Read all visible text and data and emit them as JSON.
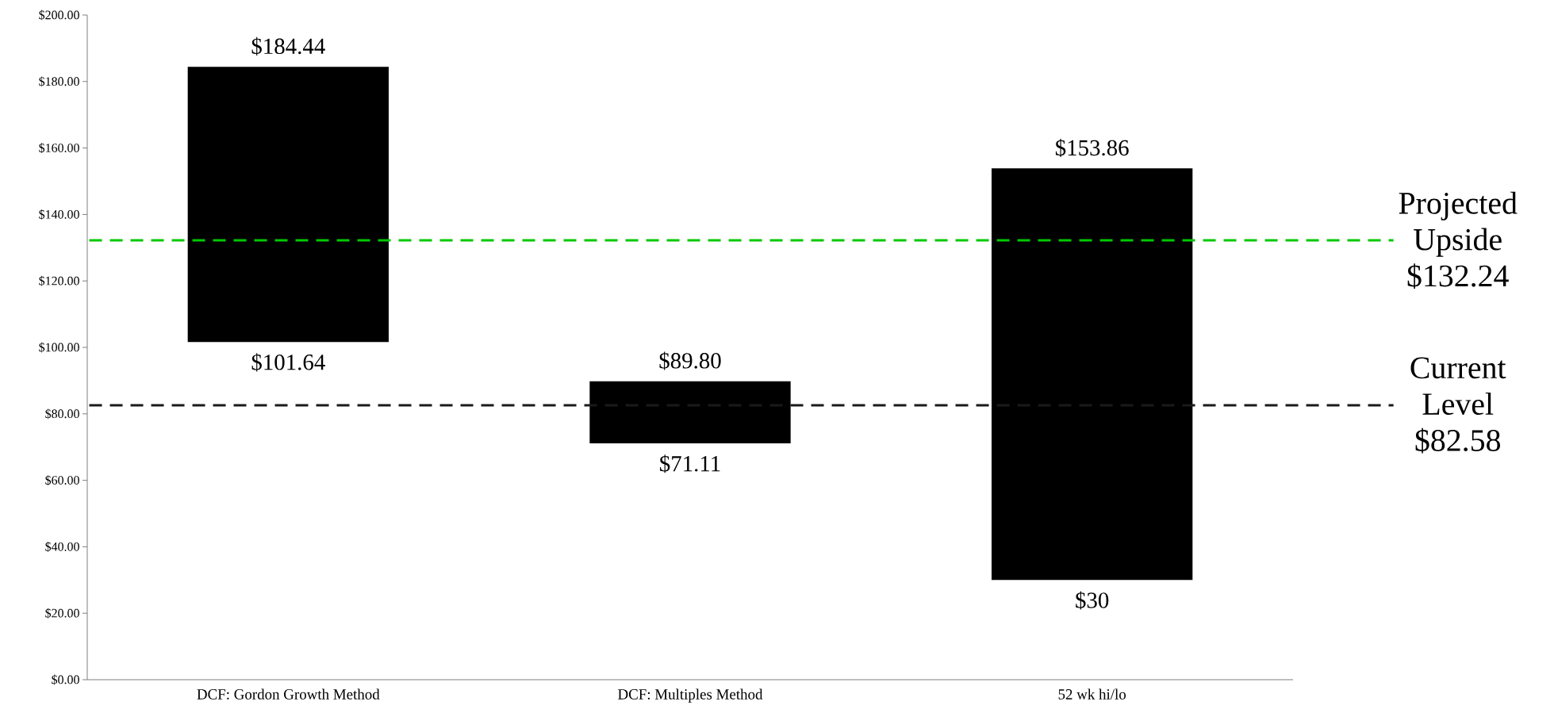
{
  "chart_data": {
    "type": "bar",
    "categories": [
      "DCF: Gordon Growth Method",
      "DCF: Multiples Method",
      "52 wk hi/lo"
    ],
    "values": [
      82.8,
      18.69,
      123.86
    ],
    "base": [
      101.64,
      71.11,
      30
    ],
    "color": "#000000",
    "ylim": [
      0,
      200
    ],
    "yticks": [
      {
        "value": 0,
        "label": "$0.00"
      },
      {
        "value": 20,
        "label": "$20.00"
      },
      {
        "value": 40,
        "label": "$40.00"
      },
      {
        "value": 60,
        "label": "$60.00"
      },
      {
        "value": 80,
        "label": "$80.00"
      },
      {
        "value": 100,
        "label": "$100.00"
      },
      {
        "value": 120,
        "label": "$120.00"
      },
      {
        "value": 140,
        "label": "$140.00"
      },
      {
        "value": 160,
        "label": "$160.00"
      },
      {
        "value": 180,
        "label": "$180.00"
      },
      {
        "value": 200,
        "label": "$200.00"
      }
    ],
    "annotations": [
      {
        "text": "$184.44",
        "x": "DCF: Gordon Growth Method",
        "y": 184.44
      },
      {
        "text": "$101.64",
        "x": "DCF: Gordon Growth Method",
        "y": 101.64
      },
      {
        "text": "$89.80",
        "x": "DCF: Multiples Method",
        "y": 89.8
      },
      {
        "text": "$71.11",
        "x": "DCF: Multiples Method",
        "y": 71.11
      },
      {
        "text": "$153.86",
        "x": "52 wk hi/lo",
        "y": 153.86
      },
      {
        "text": "$30",
        "x": "52 wk hi/lo",
        "y": 30
      }
    ],
    "ref_lines": [
      {
        "axis": "y",
        "value": 132.24,
        "label": "Projected Upside $132.24",
        "color": "#00c800",
        "line_style": "dashed"
      },
      {
        "axis": "y",
        "value": 82.58,
        "label": "Current Level $82.58",
        "color": "#1a1a1a",
        "line_style": "dashed"
      }
    ],
    "grid": false,
    "legend": false
  }
}
